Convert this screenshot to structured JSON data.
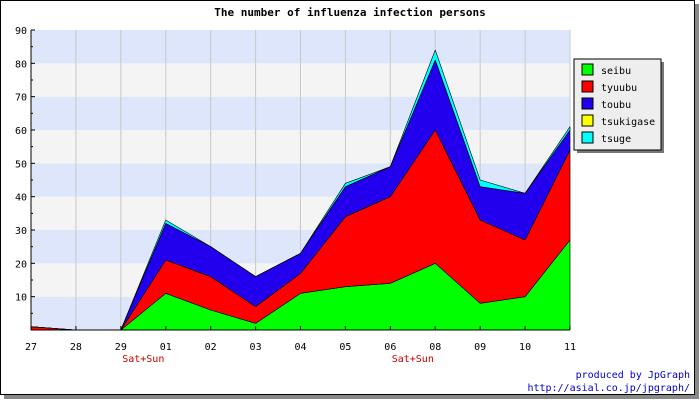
{
  "chart_data": {
    "type": "area",
    "stacked": true,
    "title": "The number of influenza infection persons",
    "xlabel": "",
    "ylabel": "",
    "categories": [
      "27",
      "28",
      "29",
      "01",
      "02",
      "03",
      "04",
      "05",
      "06",
      "08",
      "09",
      "10",
      "11"
    ],
    "category_annotations": [
      {
        "between": [
          "29",
          "01"
        ],
        "text": "Sat+Sun",
        "color": "#cc0000"
      },
      {
        "between": [
          "06",
          "08"
        ],
        "text": "Sat+Sun",
        "color": "#cc0000"
      }
    ],
    "ylim": [
      0,
      90
    ],
    "yticks": [
      10,
      20,
      30,
      40,
      50,
      60,
      70,
      80,
      90
    ],
    "grid": true,
    "legend_position": "right",
    "series": [
      {
        "name": "seibu",
        "color": "#00ff00",
        "values": [
          0,
          0,
          0,
          11,
          6,
          2,
          11,
          13,
          14,
          20,
          8,
          10,
          27
        ]
      },
      {
        "name": "tyuubu",
        "color": "#ff0000",
        "values": [
          1,
          0,
          0,
          10,
          10,
          5,
          6,
          21,
          26,
          40,
          25,
          17,
          27
        ]
      },
      {
        "name": "toubu",
        "color": "#2200ee",
        "values": [
          0,
          0,
          0,
          11,
          9,
          9,
          6,
          9,
          9,
          21,
          10,
          14,
          6
        ]
      },
      {
        "name": "tsukigase",
        "color": "#ffff00",
        "values": [
          0,
          0,
          0,
          0,
          0,
          0,
          0,
          0,
          0,
          0,
          0,
          0,
          0
        ]
      },
      {
        "name": "tsuge",
        "color": "#00ffff",
        "values": [
          0,
          0,
          0,
          1,
          0,
          0,
          0,
          1,
          0,
          3,
          2,
          0,
          1
        ]
      }
    ]
  },
  "credits": {
    "line1": "produced by JpGraph",
    "line2": "http://asial.co.jp/jpgraph/",
    "color": "#0000cc"
  }
}
